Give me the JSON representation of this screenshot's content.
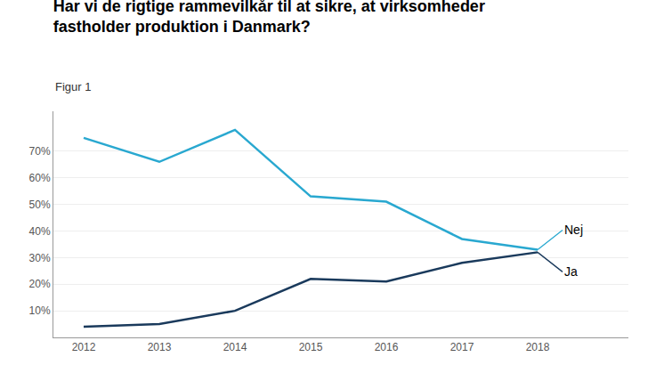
{
  "chart_data": {
    "type": "line",
    "title": "Har vi de rigtige rammevilkår til at sikre, at virksomheder\nfastholder produktion i Danmark?",
    "subtitle": "Figur 1",
    "x": [
      2012,
      2013,
      2014,
      2015,
      2016,
      2017,
      2018
    ],
    "series": [
      {
        "name": "Nej",
        "color": "#29A8D0",
        "values": [
          75,
          66,
          78,
          53,
          51,
          37,
          33
        ]
      },
      {
        "name": "Ja",
        "color": "#1A3A5C",
        "values": [
          4,
          5,
          10,
          22,
          21,
          28,
          32
        ]
      }
    ],
    "xlim": [
      2011.6,
      2019.2
    ],
    "xticks": [
      2012,
      2013,
      2014,
      2015,
      2016,
      2017,
      2018
    ],
    "ylim": [
      0,
      85
    ],
    "yticks": [
      {
        "value": 10,
        "label": "10%"
      },
      {
        "value": 20,
        "label": "20%"
      },
      {
        "value": 30,
        "label": "30%"
      },
      {
        "value": 40,
        "label": "40%"
      },
      {
        "value": 50,
        "label": "50%"
      },
      {
        "value": 60,
        "label": "60%"
      },
      {
        "value": 70,
        "label": "70%"
      }
    ],
    "grid": true
  }
}
